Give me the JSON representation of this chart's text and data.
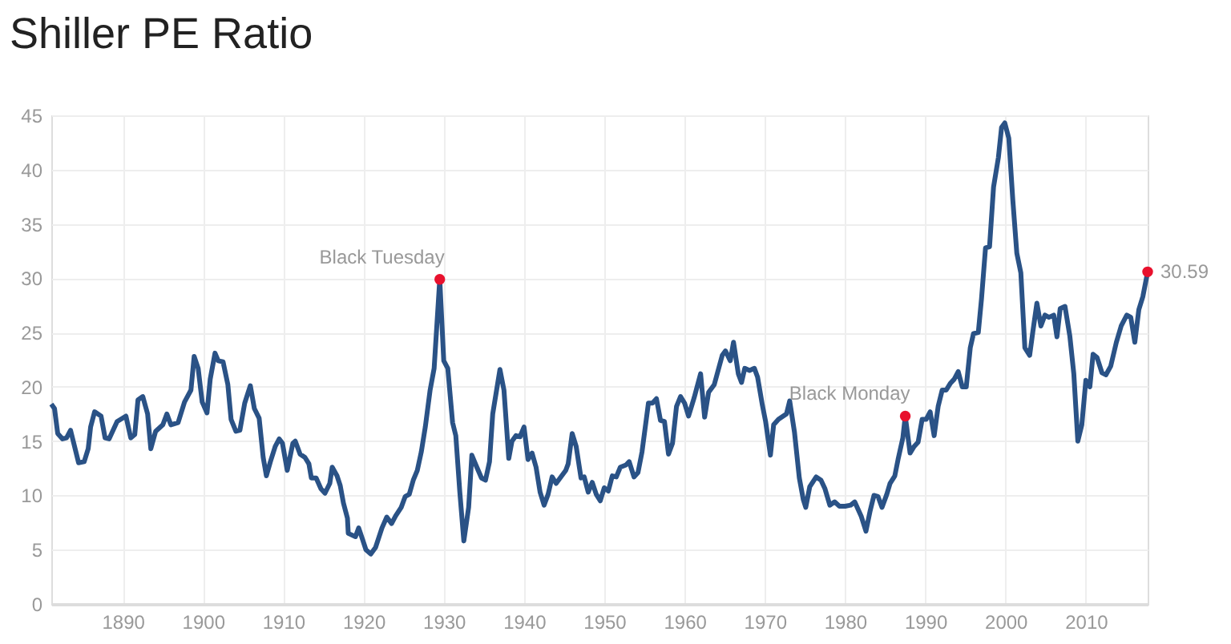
{
  "chart_data": {
    "type": "line",
    "title": "Shiller PE Ratio",
    "xlim": [
      1881.1,
      2017.7
    ],
    "xticks": [
      1890,
      1900,
      1910,
      1920,
      1930,
      1940,
      1950,
      1960,
      1970,
      1980,
      1990,
      2000,
      2010
    ],
    "ylim": [
      0,
      45
    ],
    "yticks": [
      0,
      5,
      10,
      15,
      20,
      25,
      30,
      35,
      40,
      45
    ],
    "grid": true,
    "series": [
      {
        "color": "#2a5286",
        "x": [
          1881.1,
          1881.5,
          1881.9,
          1882.5,
          1883,
          1883.5,
          1884.5,
          1885.2,
          1885.7,
          1886,
          1886.5,
          1887.3,
          1887.8,
          1888.3,
          1889.3,
          1890.4,
          1891,
          1891.5,
          1891.9,
          1892.5,
          1893.1,
          1893.5,
          1894.1,
          1895,
          1895.5,
          1896,
          1896.9,
          1897.7,
          1898.5,
          1898.9,
          1899.4,
          1899.9,
          1900.5,
          1900.9,
          1901.5,
          1901.9,
          1902.5,
          1903.1,
          1903.5,
          1904.1,
          1904.6,
          1905.2,
          1905.9,
          1906.4,
          1907,
          1907.5,
          1907.9,
          1908.4,
          1909,
          1909.5,
          1909.9,
          1910.5,
          1911.2,
          1911.5,
          1912.1,
          1912.7,
          1913.2,
          1913.5,
          1914.1,
          1914.7,
          1915.2,
          1915.8,
          1916.1,
          1916.7,
          1917.1,
          1917.5,
          1918,
          1918.1,
          1919,
          1919.4,
          1919.9,
          1920.3,
          1920.9,
          1921.5,
          1922.3,
          1922.9,
          1923.5,
          1924,
          1924.7,
          1925.2,
          1925.7,
          1926.2,
          1926.7,
          1927.2,
          1927.7,
          1928.3,
          1928.8,
          1929.5,
          1930,
          1930.5,
          1931.1,
          1931.5,
          1932,
          1932.5,
          1933.1,
          1933.5,
          1934,
          1934.7,
          1935.2,
          1935.7,
          1936.1,
          1937,
          1937.5,
          1938.1,
          1938.5,
          1939,
          1939.5,
          1940,
          1940.5,
          1941,
          1941.5,
          1942,
          1942.5,
          1943,
          1943.5,
          1944,
          1944.7,
          1945.2,
          1945.5,
          1946,
          1946.5,
          1947.1,
          1947.5,
          1948,
          1948.5,
          1949,
          1949.5,
          1950,
          1950.5,
          1951,
          1951.5,
          1952,
          1952.7,
          1953.1,
          1953.7,
          1954.2,
          1954.7,
          1955.5,
          1956,
          1956.5,
          1957,
          1957.5,
          1958,
          1958.5,
          1959,
          1959.5,
          1960,
          1960.5,
          1961.2,
          1962,
          1962.5,
          1963,
          1963.7,
          1964.7,
          1965.1,
          1965.7,
          1966.1,
          1966.7,
          1967.1,
          1967.5,
          1968.1,
          1968.7,
          1969.1,
          1969.7,
          1970.1,
          1970.7,
          1971.1,
          1971.7,
          1972.1,
          1972.7,
          1973.1,
          1973.7,
          1974.3,
          1974.8,
          1975.1,
          1975.6,
          1976.4,
          1977,
          1977.5,
          1978.1,
          1978.7,
          1979.3,
          1980,
          1980.7,
          1981.2,
          1982,
          1982.6,
          1983.1,
          1983.6,
          1984.1,
          1984.6,
          1985.2,
          1985.6,
          1986.2,
          1986.6,
          1987.2,
          1987.5,
          1988.1,
          1988.6,
          1989.1,
          1989.6,
          1990.1,
          1990.6,
          1991.1,
          1991.6,
          1992.1,
          1992.6,
          1993.1,
          1993.6,
          1994.1,
          1994.6,
          1995.1,
          1995.6,
          1996,
          1996.6,
          1997,
          1997.5,
          1998,
          1998.5,
          1999.1,
          1999.5,
          1999.9,
          2000.4,
          2000.9,
          2001.4,
          2001.9,
          2002.4,
          2003,
          2003.4,
          2003.9,
          2004.4,
          2004.9,
          2005.4,
          2006,
          2006.4,
          2006.8,
          2007.4,
          2008,
          2008.5,
          2009,
          2009.5,
          2010,
          2010.5,
          2010.9,
          2011.4,
          2012,
          2012.5,
          2013.1,
          2013.8,
          2014.4,
          2015.1,
          2015.6,
          2016.1,
          2016.6,
          2017.1,
          2017.7
        ],
        "values": [
          18.4,
          18.0,
          15.7,
          15.2,
          15.3,
          16.0,
          13.0,
          13.1,
          14.3,
          16.3,
          17.7,
          17.3,
          15.3,
          15.2,
          16.8,
          17.3,
          15.3,
          15.6,
          18.8,
          19.1,
          17.5,
          14.3,
          15.9,
          16.5,
          17.5,
          16.5,
          16.7,
          18.6,
          19.7,
          22.8,
          21.7,
          18.6,
          17.6,
          20.7,
          23.1,
          22.4,
          22.3,
          20.2,
          17.0,
          15.9,
          16.0,
          18.5,
          20.1,
          18.0,
          17.1,
          13.5,
          11.8,
          13.1,
          14.5,
          15.2,
          14.8,
          12.3,
          14.8,
          15.0,
          13.8,
          13.5,
          12.9,
          11.6,
          11.6,
          10.6,
          10.2,
          11.1,
          12.6,
          11.8,
          10.9,
          9.3,
          7.9,
          6.5,
          6.2,
          7.0,
          5.9,
          5.0,
          4.6,
          5.2,
          7.0,
          8.0,
          7.4,
          8.1,
          8.9,
          9.9,
          10.1,
          11.4,
          12.3,
          14.0,
          16.3,
          19.7,
          21.7,
          29.9,
          22.4,
          21.7,
          16.7,
          15.5,
          10.3,
          5.8,
          8.9,
          13.7,
          12.8,
          11.6,
          11.4,
          13.1,
          17.5,
          21.6,
          19.7,
          13.4,
          15.0,
          15.5,
          15.4,
          16.3,
          13.3,
          13.9,
          12.6,
          10.3,
          9.1,
          10.1,
          11.7,
          11.1,
          11.8,
          12.3,
          12.9,
          15.7,
          14.5,
          11.6,
          11.7,
          10.3,
          11.2,
          10.1,
          9.5,
          10.7,
          10.4,
          11.8,
          11.7,
          12.6,
          12.8,
          13.1,
          11.7,
          12.1,
          14.0,
          18.5,
          18.5,
          18.9,
          16.9,
          16.8,
          13.8,
          14.8,
          18.2,
          19.1,
          18.5,
          17.3,
          19.0,
          21.2,
          17.2,
          19.5,
          20.2,
          22.9,
          23.3,
          22.4,
          24.1,
          21.2,
          20.4,
          21.7,
          21.5,
          21.7,
          20.9,
          18.3,
          16.8,
          13.7,
          16.5,
          17.0,
          17.2,
          17.5,
          18.7,
          15.8,
          11.6,
          9.6,
          8.9,
          10.8,
          11.7,
          11.4,
          10.6,
          9.1,
          9.4,
          9.0,
          9.0,
          9.1,
          9.4,
          8.1,
          6.7,
          8.5,
          10.0,
          9.9,
          8.9,
          10.1,
          11.1,
          11.8,
          13.3,
          15.3,
          17.3,
          13.9,
          14.5,
          14.9,
          17.0,
          17.0,
          17.7,
          15.5,
          18.2,
          19.7,
          19.7,
          20.3,
          20.7,
          21.4,
          20.0,
          20.0,
          23.6,
          24.9,
          25.0,
          28.1,
          32.8,
          32.9,
          38.4,
          41.1,
          43.9,
          44.3,
          42.9,
          37.2,
          32.3,
          30.5,
          23.6,
          22.9,
          25.1,
          27.7,
          25.6,
          26.6,
          26.4,
          26.6,
          24.6,
          27.2,
          27.4,
          24.7,
          21.2,
          15.0,
          16.5,
          20.6,
          20.0,
          23.0,
          22.7,
          21.3,
          21.1,
          21.9,
          24.1,
          25.6,
          26.6,
          26.4,
          24.1,
          27.1,
          28.3,
          30.59
        ]
      },
      {
        "type": "scatter",
        "color": "#e8112d",
        "marker": "circle",
        "x": [
          1929.5,
          1987.5,
          2017.7
        ],
        "values": [
          29.9,
          17.3,
          30.59
        ],
        "value_labels": [
          null,
          null,
          "30.59"
        ]
      }
    ],
    "annotations": [
      {
        "text": "Black Tuesday",
        "x": 1929.5,
        "y": 29.9
      },
      {
        "text": "Black Monday",
        "x": 1987.5,
        "y": 17.3
      }
    ]
  }
}
